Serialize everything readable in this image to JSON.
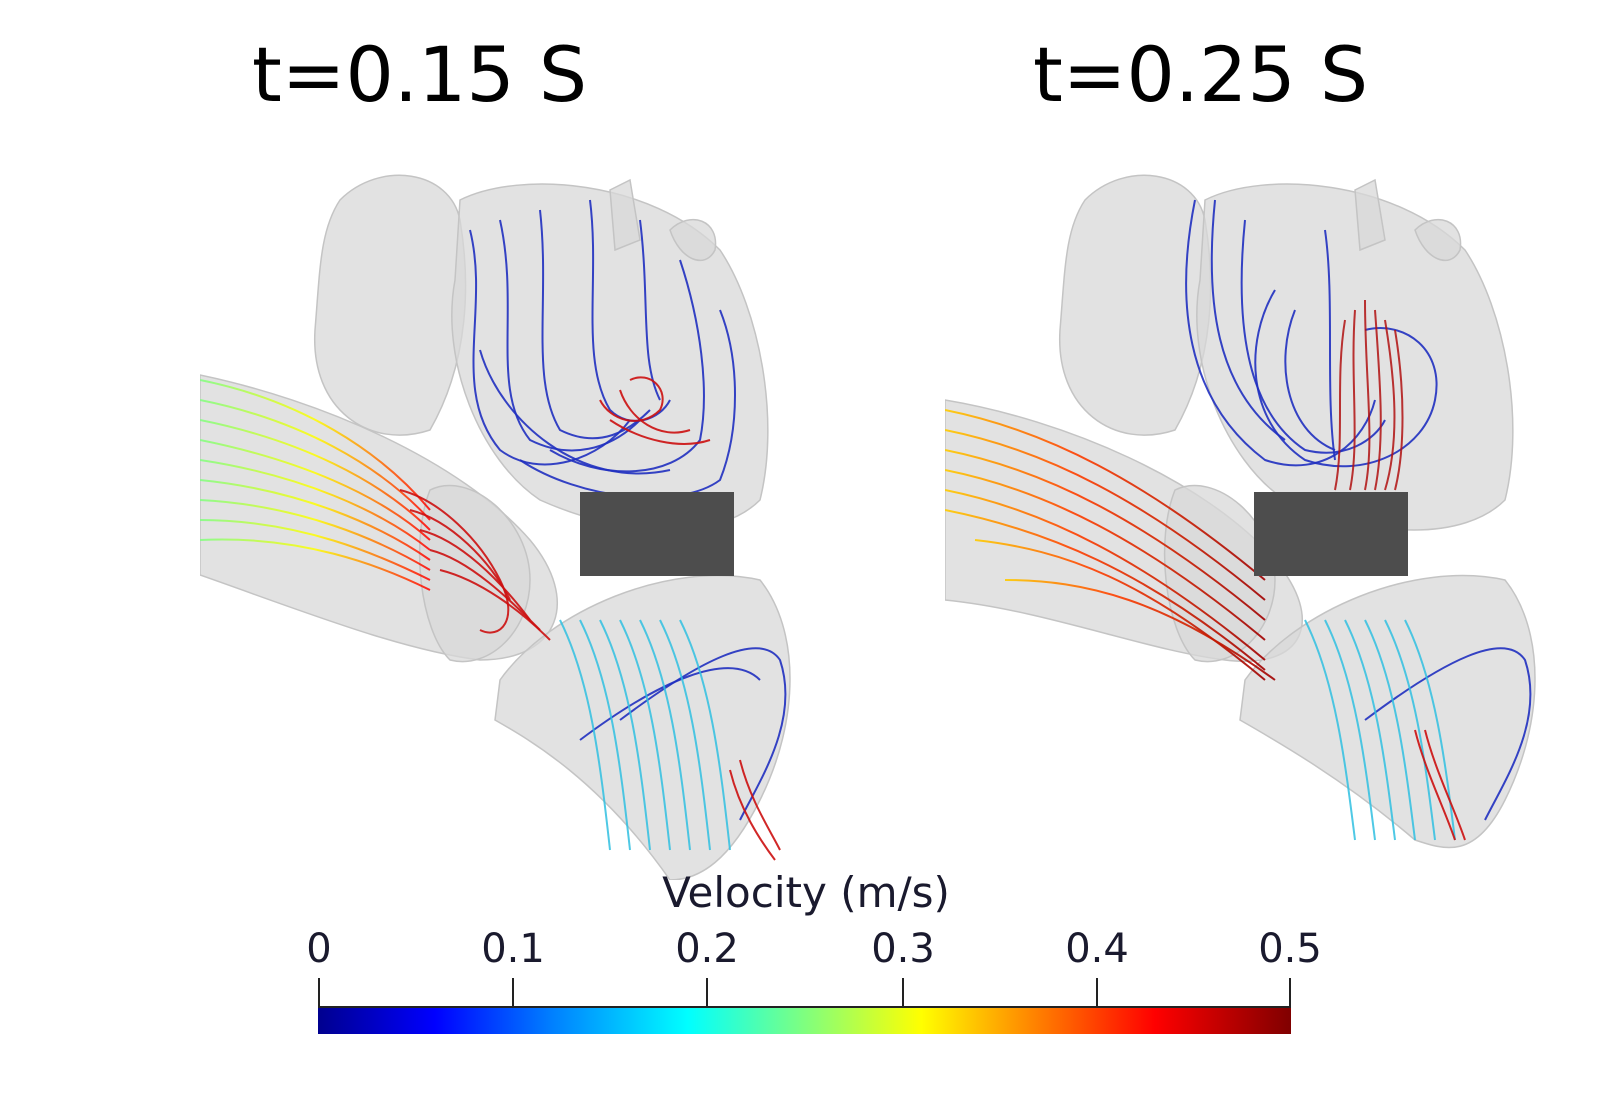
{
  "panels": [
    {
      "time_label": "t=0.15 S"
    },
    {
      "time_label": "t=0.25 S"
    }
  ],
  "colorbar": {
    "title": "Velocity (m/s)",
    "ticks": [
      "0",
      "0.1",
      "0.2",
      "0.3",
      "0.4",
      "0.5"
    ],
    "range": [
      0,
      0.5
    ],
    "colormap": [
      "#00008f",
      "#0000ff",
      "#007fff",
      "#00ffff",
      "#7fff7f",
      "#ffff00",
      "#ff7f00",
      "#ff0000",
      "#800000"
    ]
  },
  "colors": {
    "anatomy": "#d9d9d9",
    "redaction_box": "#4d4d4d"
  }
}
